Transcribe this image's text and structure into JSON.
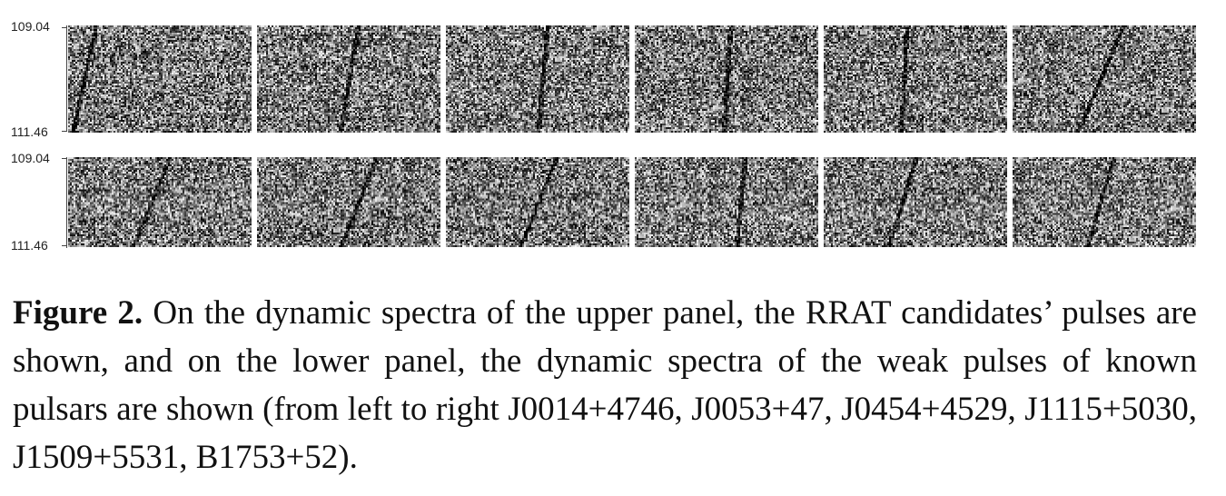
{
  "figure": {
    "upper_row": {
      "freq_top": "109.04",
      "freq_bottom": "111.46"
    },
    "lower_row": {
      "freq_top": "109.04",
      "freq_bottom": "111.46"
    },
    "panels_per_row": 6
  },
  "caption": {
    "label": "Figure 2.",
    "text": " On the dynamic spectra of the upper panel, the RRAT candidates’ pulses are shown, and on the lower panel, the dynamic spectra of the weak pulses of known pulsars are shown (from left to right J0014+4746, J0053+47, J0454+4529, J1115+5030, J1509+5531, B1753+52)."
  }
}
